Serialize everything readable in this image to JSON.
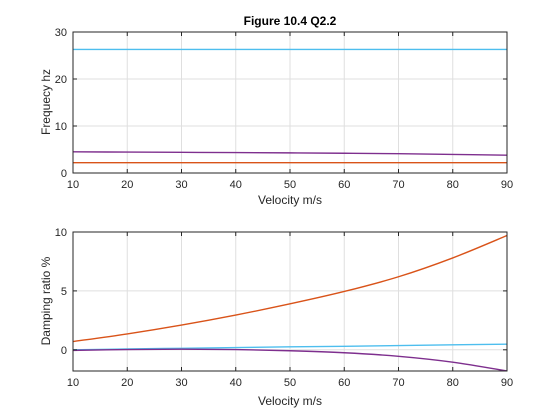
{
  "chart_data": [
    {
      "type": "line",
      "title": "Figure 10.4 Q2.2",
      "xlabel": "Velocity m/s",
      "ylabel": "Frequecy hz",
      "xlim": [
        10,
        90
      ],
      "ylim": [
        0,
        30
      ],
      "xticks": [
        10,
        20,
        30,
        40,
        50,
        60,
        70,
        80,
        90
      ],
      "yticks": [
        0,
        10,
        20,
        30
      ],
      "grid": true,
      "x": [
        10,
        20,
        30,
        40,
        50,
        60,
        70,
        80,
        90
      ],
      "series": [
        {
          "color": "#D95319",
          "values": [
            2.2,
            2.2,
            2.2,
            2.2,
            2.2,
            2.2,
            2.2,
            2.2,
            2.2
          ]
        },
        {
          "color": "#4DBEEE",
          "values": [
            26.3,
            26.3,
            26.3,
            26.3,
            26.3,
            26.3,
            26.3,
            26.3,
            26.3
          ]
        },
        {
          "color": "#7E2F8E",
          "values": [
            4.5,
            4.45,
            4.4,
            4.35,
            4.28,
            4.2,
            4.1,
            3.95,
            3.8
          ]
        }
      ]
    },
    {
      "type": "line",
      "title": "",
      "xlabel": "Velocity m/s",
      "ylabel": "Damping ratio %",
      "xlim": [
        10,
        90
      ],
      "ylim": [
        -1.8,
        10
      ],
      "xticks": [
        10,
        20,
        30,
        40,
        50,
        60,
        70,
        80,
        90
      ],
      "yticks": [
        0,
        5,
        10
      ],
      "grid": true,
      "x": [
        10,
        20,
        30,
        40,
        50,
        60,
        70,
        80,
        90
      ],
      "series": [
        {
          "color": "#D95319",
          "values": [
            0.7,
            1.35,
            2.1,
            2.95,
            3.9,
            4.95,
            6.2,
            7.8,
            9.7
          ]
        },
        {
          "color": "#4DBEEE",
          "values": [
            0.0,
            0.07,
            0.13,
            0.19,
            0.25,
            0.3,
            0.36,
            0.42,
            0.48
          ]
        },
        {
          "color": "#7E2F8E",
          "values": [
            -0.05,
            0.02,
            0.05,
            0.02,
            -0.08,
            -0.25,
            -0.55,
            -1.05,
            -1.8
          ]
        }
      ]
    }
  ]
}
